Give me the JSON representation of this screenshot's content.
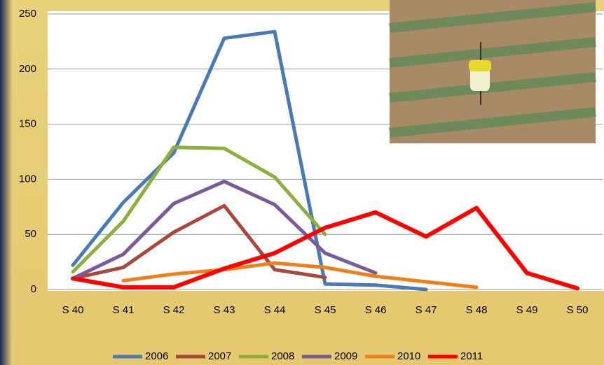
{
  "chart_data": {
    "type": "line",
    "categories": [
      "S 40",
      "S 41",
      "S 42",
      "S 43",
      "S 44",
      "S 45",
      "S 46",
      "S 47",
      "S 48",
      "S 49",
      "S 50"
    ],
    "series": [
      {
        "name": "2006",
        "color": "#4a7ab5",
        "values": [
          22,
          79,
          124,
          228,
          234,
          5,
          4,
          0,
          null,
          null,
          null
        ]
      },
      {
        "name": "2007",
        "color": "#a9473f",
        "values": [
          10,
          20,
          52,
          76,
          18,
          11,
          null,
          null,
          null,
          null,
          null
        ]
      },
      {
        "name": "2008",
        "color": "#8caf3f",
        "values": [
          16,
          62,
          129,
          128,
          102,
          50,
          null,
          null,
          null,
          null,
          null
        ]
      },
      {
        "name": "2009",
        "color": "#7a5a9a",
        "values": [
          10,
          32,
          78,
          98,
          77,
          33,
          15,
          null,
          null,
          null,
          null
        ]
      },
      {
        "name": "2010",
        "color": "#f07f1a",
        "values": [
          null,
          8,
          14,
          18,
          24,
          20,
          12,
          7,
          2,
          null,
          null
        ]
      },
      {
        "name": "2011",
        "color": "#ff0000",
        "values": [
          10,
          2,
          2,
          19,
          33,
          56,
          70,
          48,
          74,
          15,
          1
        ]
      }
    ],
    "ylim": [
      0,
      250
    ],
    "yticks": [
      0,
      50,
      100,
      150,
      200,
      250
    ],
    "grid": true,
    "legend": "bottom"
  }
}
